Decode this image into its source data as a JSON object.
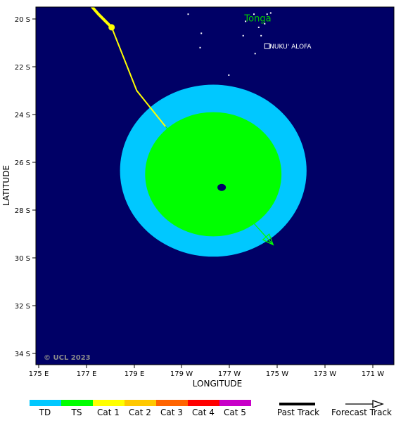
{
  "axes": {
    "x_title": "LONGITUDE",
    "y_title": "LATITUDE",
    "x_ticks": [
      "175 E",
      "177 E",
      "179 E",
      "179 W",
      "177 W",
      "175 W",
      "173 W",
      "171 W"
    ],
    "y_ticks": [
      "20 S",
      "22 S",
      "24 S",
      "26 S",
      "28 S",
      "30 S",
      "32 S",
      "34 S"
    ],
    "lon_range_deg_east": [
      174.7,
      189.5
    ],
    "lat_range_deg": [
      -19.5,
      -34.5
    ]
  },
  "labels": {
    "country": "Tonga",
    "capital": "NUKU' ALOFA",
    "copyright": "© UCL 2023"
  },
  "colors": {
    "ocean": "#000066",
    "land": "#ffffff",
    "td_wind": "#00c8ff",
    "ts_wind": "#00ff00",
    "past_track": "#ffff00",
    "forecast_track": "#00ff00",
    "country_label": "#00cc00"
  },
  "storm": {
    "center": {
      "lon_e": 182.65,
      "lat": -27.05
    },
    "ts_wind_field": {
      "center_lon_e": 182.3,
      "center_lat": -26.5,
      "radius_lon_deg": 2.85,
      "radius_lat_deg": 2.6
    },
    "td_wind_field": {
      "center_lon_e": 182.3,
      "center_lat": -26.35,
      "radius_lon_deg": 3.9,
      "radius_lat_deg": 3.6
    }
  },
  "past_track": [
    {
      "lon_e": 176.8,
      "lat": -19.0
    },
    {
      "lon_e": 177.5,
      "lat": -19.8
    },
    {
      "lon_e": 178.05,
      "lat": -20.35
    },
    {
      "lon_e": 179.1,
      "lat": -23.0
    },
    {
      "lon_e": 180.3,
      "lat": -24.5
    }
  ],
  "past_track_thick_until_index": 2,
  "past_track_point": {
    "lon_e": 178.05,
    "lat": -20.35
  },
  "forecast_track": [
    {
      "lon_e": 180.3,
      "lat": -24.5
    },
    {
      "lon_e": 182.65,
      "lat": -27.05
    },
    {
      "lon_e": 184.8,
      "lat": -29.45
    }
  ],
  "tonga_islands": [
    {
      "lon_e": 183.65,
      "lat": -20.1
    },
    {
      "lon_e": 183.55,
      "lat": -20.7
    },
    {
      "lon_e": 184.2,
      "lat": -20.35
    },
    {
      "lon_e": 184.3,
      "lat": -20.7
    },
    {
      "lon_e": 184.45,
      "lat": -20.2
    },
    {
      "lon_e": 184.55,
      "lat": -19.8
    },
    {
      "lon_e": 184.0,
      "lat": -19.8
    },
    {
      "lon_e": 184.7,
      "lat": -19.75
    },
    {
      "lon_e": 181.25,
      "lat": -19.8
    },
    {
      "lon_e": 181.8,
      "lat": -20.6
    },
    {
      "lon_e": 181.75,
      "lat": -21.2
    },
    {
      "lon_e": 182.95,
      "lat": -22.35
    },
    {
      "lon_e": 184.05,
      "lat": -21.45
    }
  ],
  "capital_marker": {
    "lon_e": 184.8,
    "lat": -21.15
  },
  "legend": {
    "categories": [
      {
        "label": "TD",
        "color": "#00c8ff"
      },
      {
        "label": "TS",
        "color": "#00ff00"
      },
      {
        "label": "Cat 1",
        "color": "#ffff00"
      },
      {
        "label": "Cat 2",
        "color": "#ffc800"
      },
      {
        "label": "Cat 3",
        "color": "#ff6400"
      },
      {
        "label": "Cat 4",
        "color": "#ff0000"
      },
      {
        "label": "Cat 5",
        "color": "#c800c8"
      }
    ],
    "past_track_label": "Past Track",
    "forecast_track_label": "Forecast Track"
  }
}
